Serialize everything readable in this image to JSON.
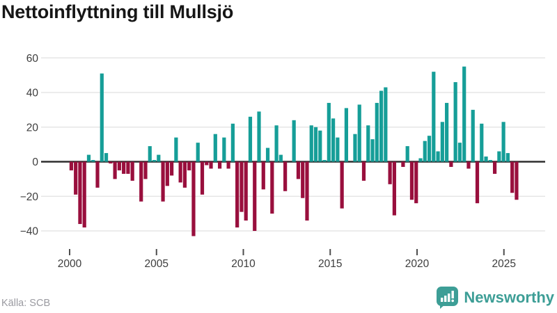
{
  "title": "Nettoinflyttning till Mullsjö",
  "source": "Källa: SCB",
  "logo": {
    "text": "Newsworthy",
    "color": "#3d9e96"
  },
  "colors": {
    "positive_bar": "#169e98",
    "negative_bar": "#990f3d",
    "zero_line": "#2e2e2e",
    "gridline": "#e6e6e6",
    "axis_label": "#3d3d3d",
    "tick_mark": "#4d4d4d"
  },
  "chart_data": {
    "type": "bar",
    "title": "Nettoinflyttning till Mullsjö",
    "frequency": "quarterly",
    "start_period": "2000Q1",
    "end_period": "2025Q3",
    "x_tick_labels": [
      "2000",
      "2005",
      "2010",
      "2015",
      "2020",
      "2025"
    ],
    "y_ticks": [
      60,
      40,
      20,
      0,
      -20,
      -40
    ],
    "ylim": [
      -48,
      64
    ],
    "grid": "horizontal",
    "legend": "none",
    "values": [
      -5,
      -19,
      -36,
      -38,
      4,
      1,
      -15,
      51,
      5,
      -1,
      -10,
      -5,
      -7,
      -7,
      -11,
      0,
      -23,
      -10,
      9,
      1,
      4,
      -23,
      -14,
      -8,
      14,
      -12,
      -15,
      -5,
      -43,
      11,
      -19,
      -2,
      -4,
      16,
      -4,
      14,
      -4,
      22,
      -38,
      -29,
      -34,
      26,
      -40,
      29,
      -16,
      8,
      -30,
      21,
      4,
      -17,
      0,
      24,
      -10,
      -21,
      -34,
      21,
      20,
      18,
      1,
      34,
      25,
      14,
      -27,
      31,
      0,
      16,
      33,
      -11,
      21,
      13,
      34,
      41,
      43,
      -13,
      -31,
      0,
      -3,
      9,
      -22,
      -24,
      2,
      12,
      15,
      52,
      6,
      23,
      34,
      -3,
      46,
      11,
      55,
      -4,
      30,
      -24,
      22,
      3,
      1,
      -7,
      6,
      23,
      5,
      -18,
      -22
    ]
  },
  "layout_note": "positive bars teal, negative bars claret"
}
